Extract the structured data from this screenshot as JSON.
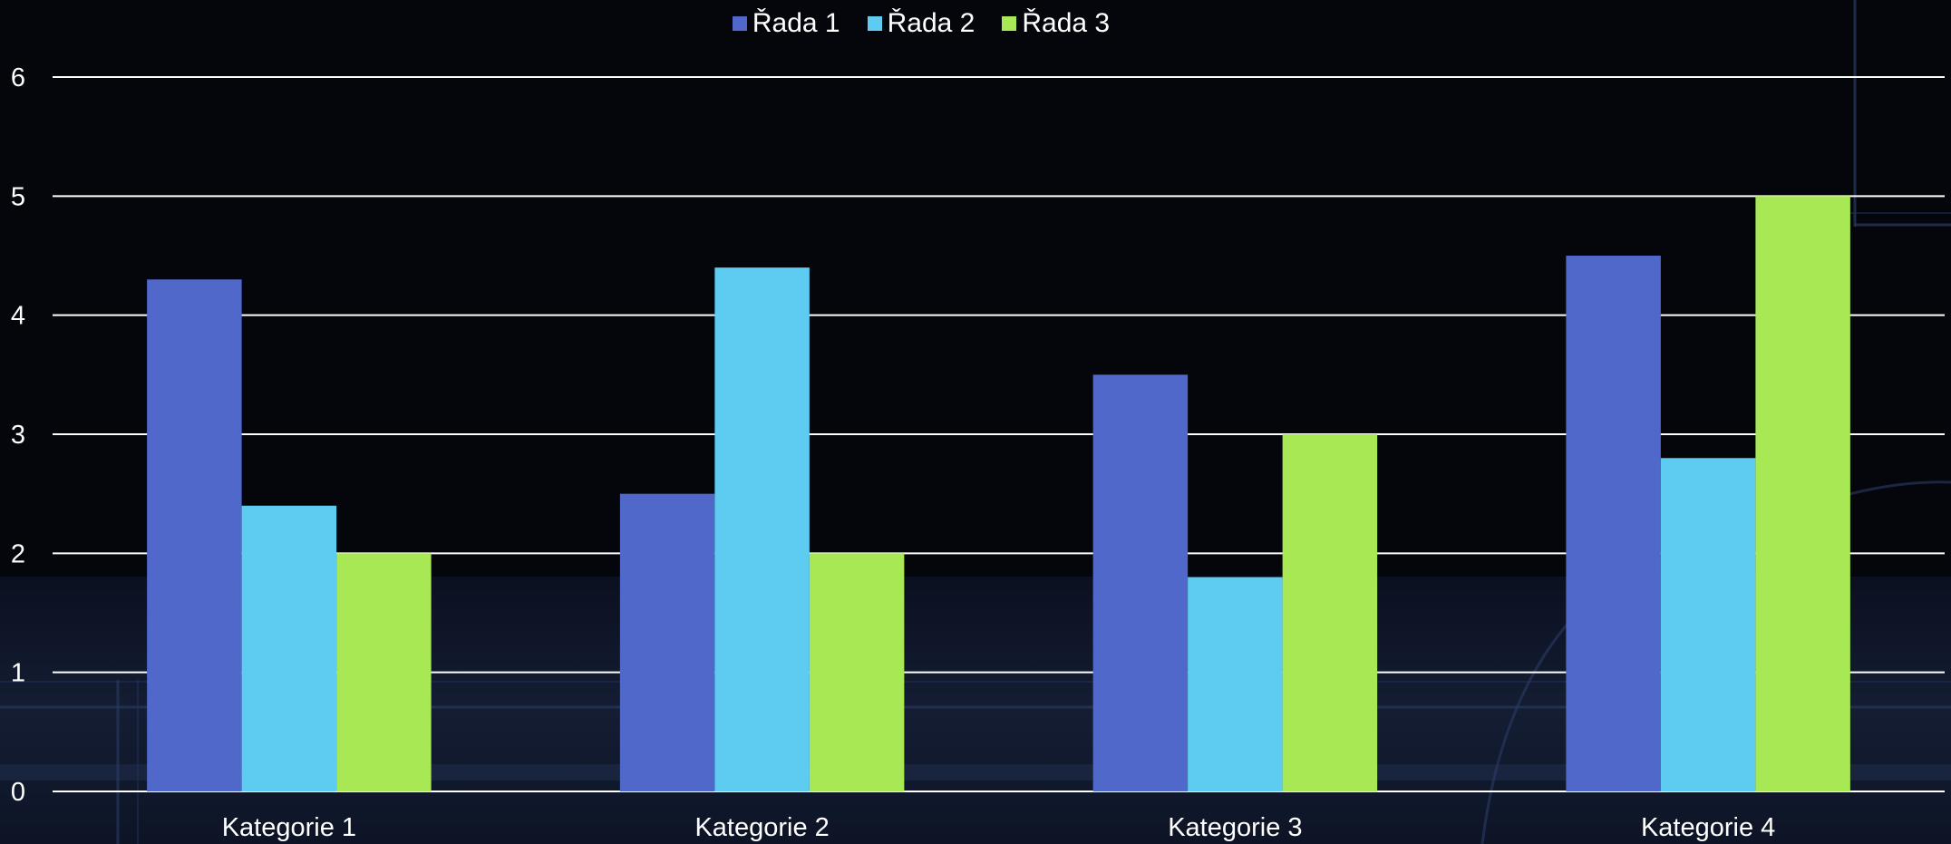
{
  "colors": {
    "background": "#05060b",
    "gridline": "#ffffff",
    "text": "#ffffff",
    "series": [
      "#4f68c9",
      "#5ecbf0",
      "#a8e854"
    ]
  },
  "chart_data": {
    "type": "bar",
    "title": "",
    "xlabel": "",
    "ylabel": "",
    "categories": [
      "Kategorie 1",
      "Kategorie 2",
      "Kategorie 3",
      "Kategorie 4"
    ],
    "series": [
      {
        "name": "Řada 1",
        "values": [
          4.3,
          2.5,
          3.5,
          4.5
        ]
      },
      {
        "name": "Řada 2",
        "values": [
          2.4,
          4.4,
          1.8,
          2.8
        ]
      },
      {
        "name": "Řada 3",
        "values": [
          2,
          2,
          3,
          5
        ]
      }
    ],
    "ylim": [
      0,
      6
    ],
    "yticks": [
      "0",
      "1",
      "2",
      "3",
      "4",
      "5",
      "6"
    ],
    "grid": true,
    "legend_position": "top"
  }
}
